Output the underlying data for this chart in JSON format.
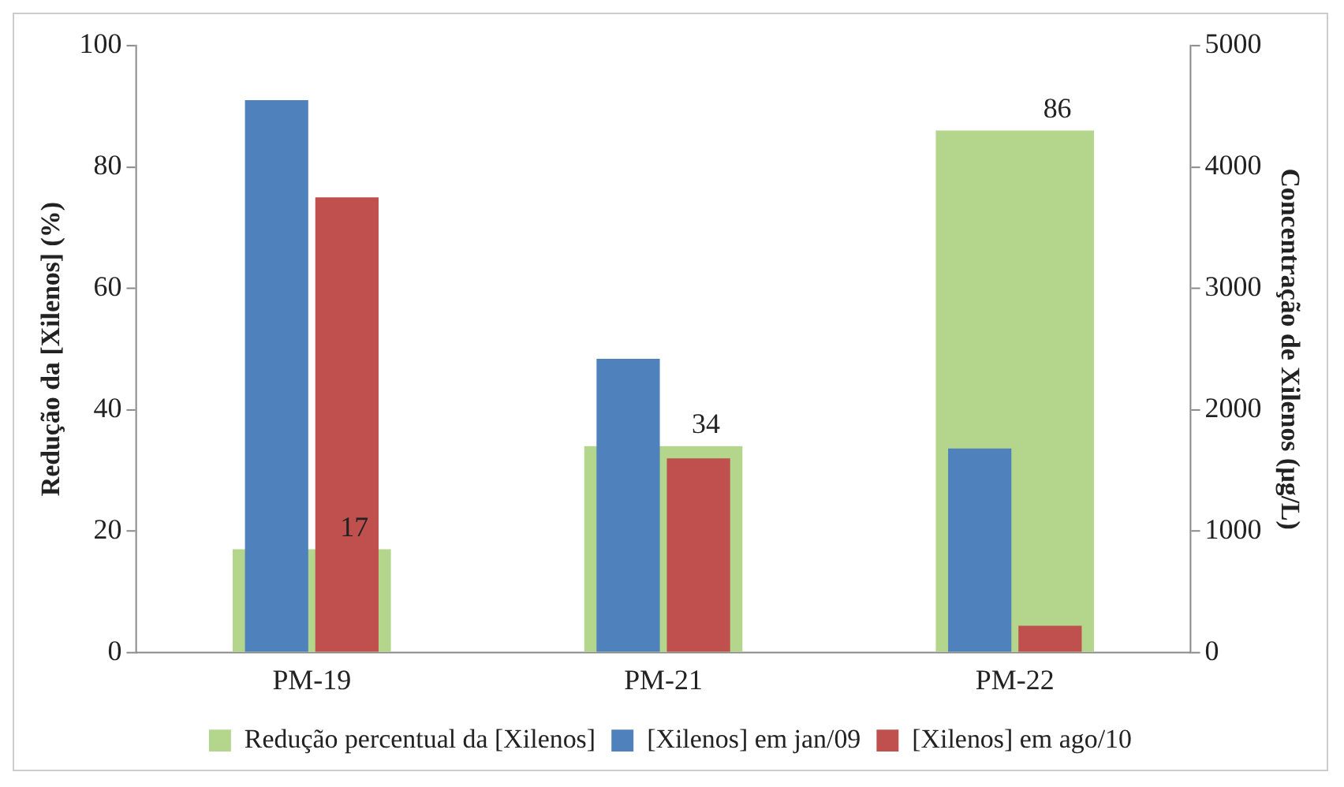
{
  "chart_data": {
    "type": "bar",
    "categories": [
      "PM-19",
      "PM-21",
      "PM-22"
    ],
    "ylabel": "Redução da [Xilenos] (%)",
    "y2label": "Concentração de Xilenos (µg/L)",
    "ylim": [
      0,
      100
    ],
    "yticks": [
      0,
      20,
      40,
      60,
      80,
      100
    ],
    "y2lim": [
      0,
      5000
    ],
    "y2ticks": [
      0,
      1000,
      2000,
      3000,
      4000,
      5000
    ],
    "grid": false,
    "legend": "bottom",
    "series": [
      {
        "name": "Redução percentual da [Xilenos]",
        "color": "#b3d68c",
        "values": [
          17,
          34,
          86
        ],
        "value_labels": [
          "17",
          "34",
          "86"
        ]
      },
      {
        "name": "[Xilenos] em jan/09",
        "color": "#4f81bd",
        "values": [
          4550,
          2420,
          1680
        ],
        "axis": "y2"
      },
      {
        "name": "[Xilenos] em ago/10",
        "color": "#c0504d",
        "values": [
          3750,
          1600,
          220
        ],
        "axis": "y2"
      }
    ]
  }
}
